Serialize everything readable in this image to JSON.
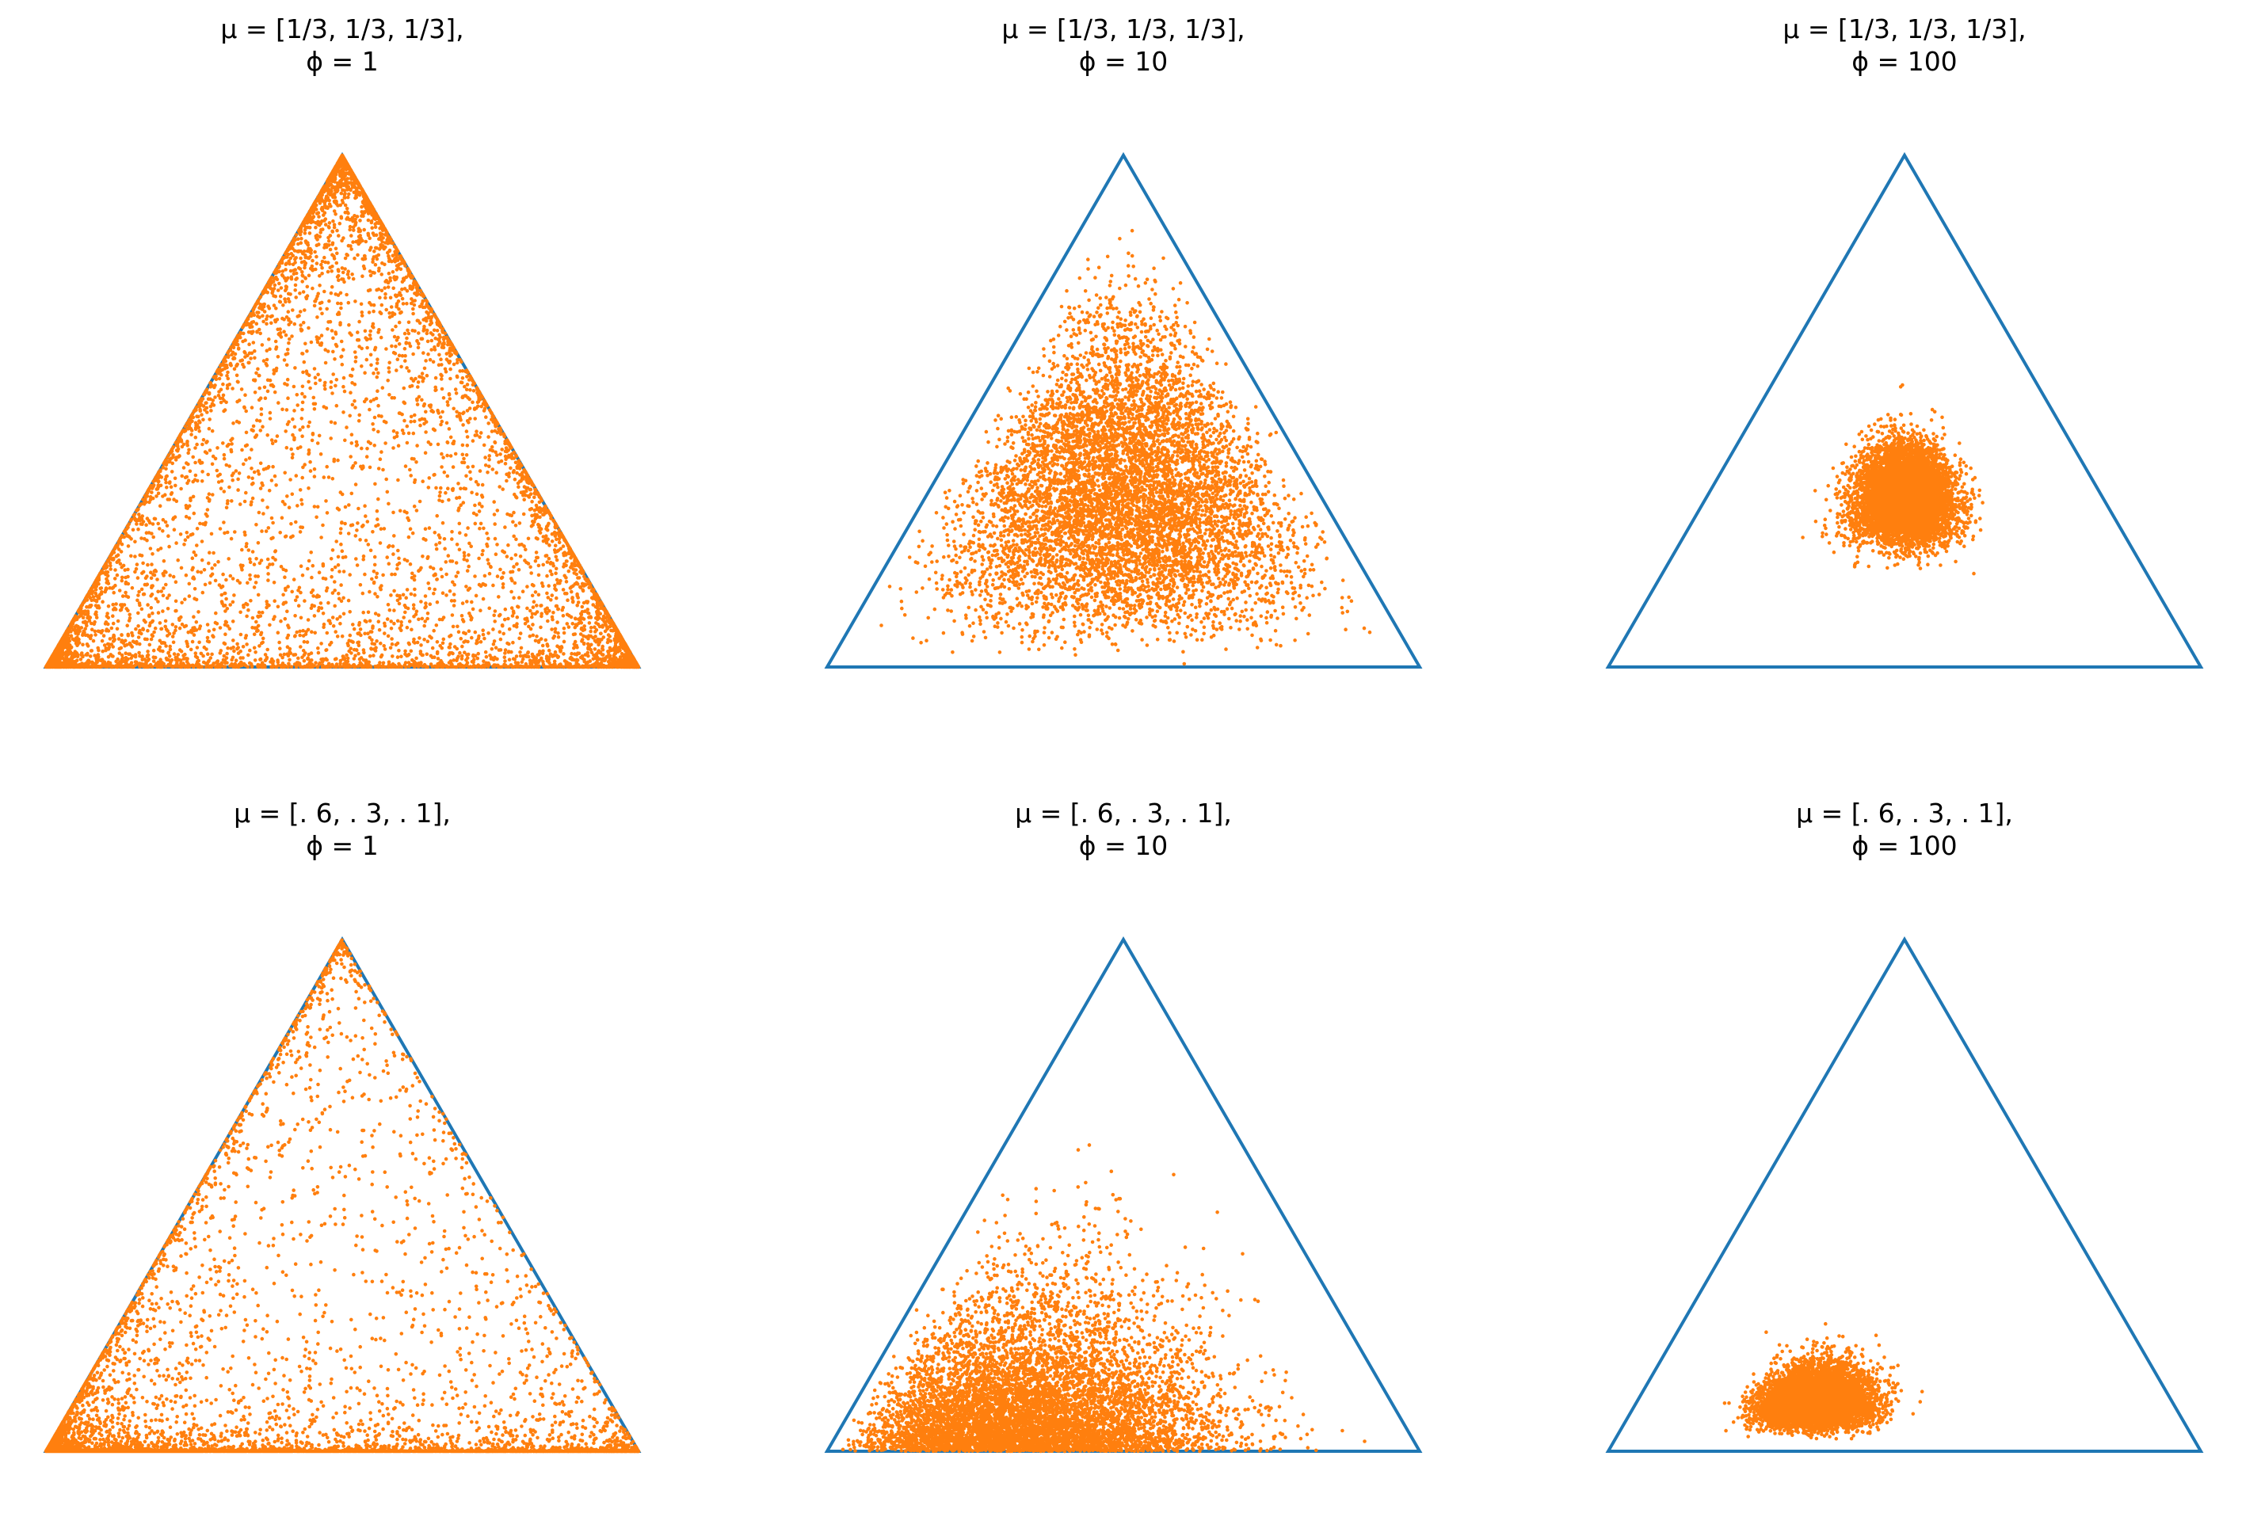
{
  "figure": {
    "triangle_color": "#1f77b4",
    "point_color": "#ff7f0e"
  },
  "chart_data": [
    {
      "type": "scatter",
      "subtype": "ternary-simplex",
      "title_line1": "μ = [1/3, 1/3, 1/3],",
      "title_line2": "ϕ = 1",
      "mu": [
        0.3333,
        0.3333,
        0.3334
      ],
      "phi": 1,
      "n_points": 7000
    },
    {
      "type": "scatter",
      "subtype": "ternary-simplex",
      "title_line1": "μ = [1/3, 1/3, 1/3],",
      "title_line2": "ϕ = 10",
      "mu": [
        0.3333,
        0.3333,
        0.3334
      ],
      "phi": 10,
      "n_points": 7000
    },
    {
      "type": "scatter",
      "subtype": "ternary-simplex",
      "title_line1": "μ = [1/3, 1/3, 1/3],",
      "title_line2": "ϕ = 100",
      "mu": [
        0.3333,
        0.3333,
        0.3334
      ],
      "phi": 100,
      "n_points": 7000
    },
    {
      "type": "scatter",
      "subtype": "ternary-simplex",
      "title_line1": "μ = [. 6, . 3, . 1],",
      "title_line2": "ϕ = 1",
      "mu": [
        0.6,
        0.3,
        0.1
      ],
      "phi": 1,
      "n_points": 7000
    },
    {
      "type": "scatter",
      "subtype": "ternary-simplex",
      "title_line1": "μ = [. 6, . 3, . 1],",
      "title_line2": "ϕ = 10",
      "mu": [
        0.6,
        0.3,
        0.1
      ],
      "phi": 10,
      "n_points": 7000
    },
    {
      "type": "scatter",
      "subtype": "ternary-simplex",
      "title_line1": "μ = [. 6, . 3, . 1],",
      "title_line2": "ϕ = 100",
      "mu": [
        0.6,
        0.3,
        0.1
      ],
      "phi": 100,
      "n_points": 7000
    }
  ]
}
